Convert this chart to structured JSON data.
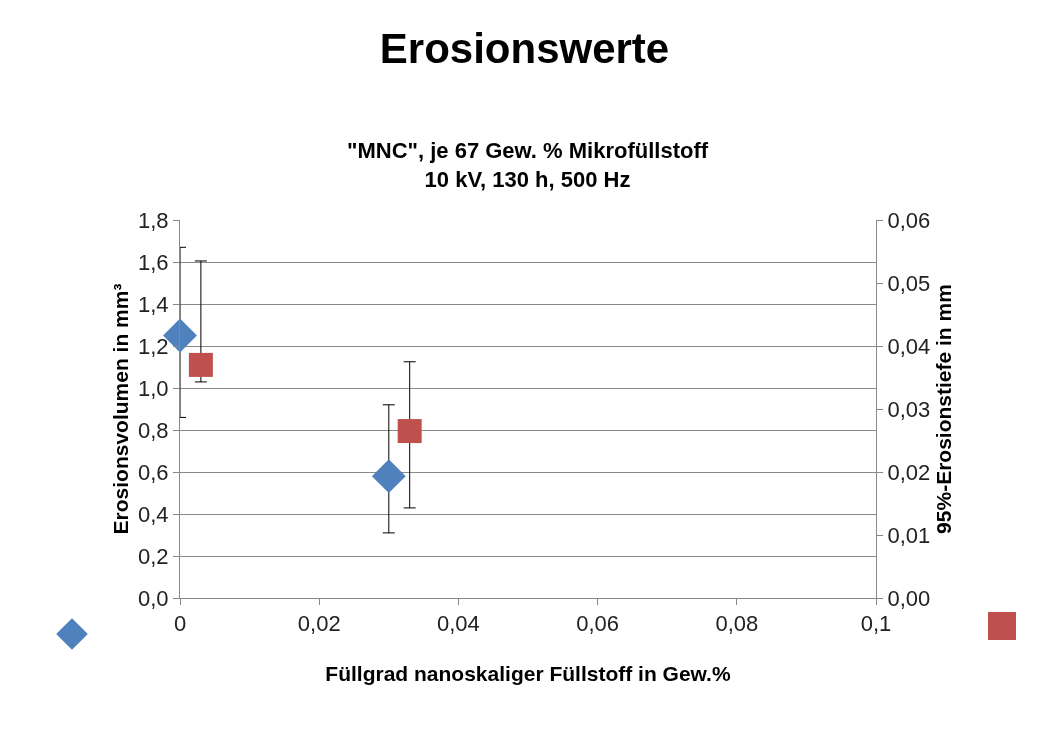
{
  "chart_data": {
    "type": "scatter",
    "title": "Erosionswerte",
    "subtitle": "\"MNC\", je 67 Gew. % Mikrofüllstoff\n10 kV, 130 h, 500 Hz",
    "xlabel": "Füllgrad nanoskaliger Füllstoff in Gew.%",
    "ylabel": "Erosionsvolumen in mm³",
    "y2label": "95%-Erosionstiefe in mm",
    "series": [
      {
        "color": "#4f81bd",
        "marker": "diamond",
        "x": [
          0,
          0.03
        ],
        "values": [
          1.25,
          0.58
        ],
        "errors": [
          [
            0.86,
            1.67
          ],
          [
            0.31,
            0.92
          ]
        ]
      },
      {
        "color": "#c0504d",
        "marker": "square",
        "axis": "y2",
        "x": [
          0.003,
          0.033
        ],
        "values": [
          0.037,
          0.0265
        ],
        "errors": [
          [
            0.0343,
            0.0535
          ],
          [
            0.0143,
            0.0375
          ]
        ]
      }
    ],
    "xlim": [
      0,
      0.1
    ],
    "xticks": [
      0,
      {
        "value": 0.02,
        "label": "0,02"
      },
      {
        "value": 0.04,
        "label": "0,04"
      },
      {
        "value": 0.06,
        "label": "0,06"
      },
      {
        "value": 0.08,
        "label": "0,08"
      },
      {
        "value": 0.1,
        "label": "0,1"
      }
    ],
    "ylim": [
      0,
      1.8
    ],
    "yticks": [
      {
        "value": 0,
        "label": "0,0"
      },
      {
        "value": 0.2,
        "label": "0,2"
      },
      {
        "value": 0.4,
        "label": "0,4"
      },
      {
        "value": 0.6,
        "label": "0,6"
      },
      {
        "value": 0.8,
        "label": "0,8"
      },
      {
        "value": 1,
        "label": "1,0"
      },
      {
        "value": 1.2,
        "label": "1,2"
      },
      {
        "value": 1.4,
        "label": "1,4"
      },
      {
        "value": 1.6,
        "label": "1,6"
      },
      {
        "value": 1.8,
        "label": "1,8"
      }
    ],
    "y2lim": [
      0,
      0.06
    ],
    "y2ticks": [
      {
        "value": 0,
        "label": "0,00"
      },
      {
        "value": 0.01,
        "label": "0,01"
      },
      {
        "value": 0.02,
        "label": "0,02"
      },
      {
        "value": 0.03,
        "label": "0,03"
      },
      {
        "value": 0.04,
        "label": "0,04"
      },
      {
        "value": 0.05,
        "label": "0,05"
      },
      {
        "value": 0.06,
        "label": "0,06"
      }
    ],
    "grid": "y"
  }
}
